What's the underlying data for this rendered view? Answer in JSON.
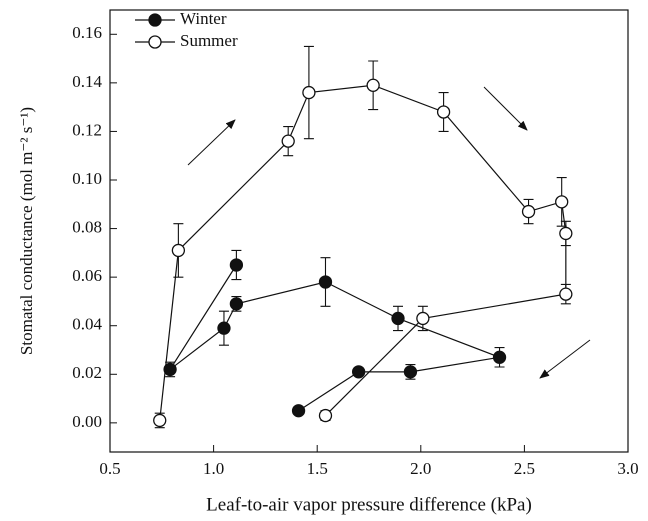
{
  "chart_data": {
    "type": "scatter-line",
    "x_label": "Leaf-to-air vapor pressure difference (kPa)",
    "y_label": "Stomatal conductance (mol m⁻² s⁻¹)",
    "xlim": [
      0.5,
      3.0
    ],
    "ylim": [
      -0.012,
      0.17
    ],
    "xticks": [
      0.5,
      {
        "value": 1.0,
        "label": "1.0"
      },
      1.5,
      {
        "value": 2.0,
        "label": "2.0"
      },
      2.5,
      {
        "value": 3.0,
        "label": "3.0"
      }
    ],
    "yticks": [
      {
        "value": 0,
        "label": "0.00"
      },
      0.02,
      0.04,
      0.06,
      0.08,
      {
        "value": 0.1,
        "label": "0.10"
      },
      0.12,
      0.14,
      0.16
    ],
    "legend": "upper left",
    "series": [
      {
        "name": "Winter",
        "color": "#111111",
        "filled": true,
        "x": [
          1.41,
          1.7,
          1.95,
          2.38,
          1.89,
          1.54,
          1.11,
          1.05,
          0.79,
          1.11
        ],
        "values": [
          0.005,
          0.021,
          0.021,
          0.027,
          0.043,
          0.058,
          0.049,
          0.039,
          0.022,
          0.065
        ],
        "errors": [
          0.0005,
          0.001,
          0.003,
          0.004,
          0.005,
          0.01,
          0.003,
          0.007,
          0.003,
          0.006
        ]
      },
      {
        "name": "Summer",
        "color": "#111111",
        "filled": false,
        "x": [
          0.74,
          0.83,
          1.36,
          1.46,
          1.77,
          2.11,
          2.52,
          2.68,
          2.7,
          2.7,
          2.01,
          1.54
        ],
        "values": [
          0.001,
          0.071,
          0.116,
          0.136,
          0.139,
          0.128,
          0.087,
          0.091,
          0.078,
          0.053,
          0.043,
          0.003
        ],
        "errors": [
          0.003,
          0.011,
          0.006,
          0.019,
          0.01,
          0.008,
          0.005,
          0.01,
          0.005,
          0.004,
          0.005,
          0.002
        ]
      }
    ]
  }
}
